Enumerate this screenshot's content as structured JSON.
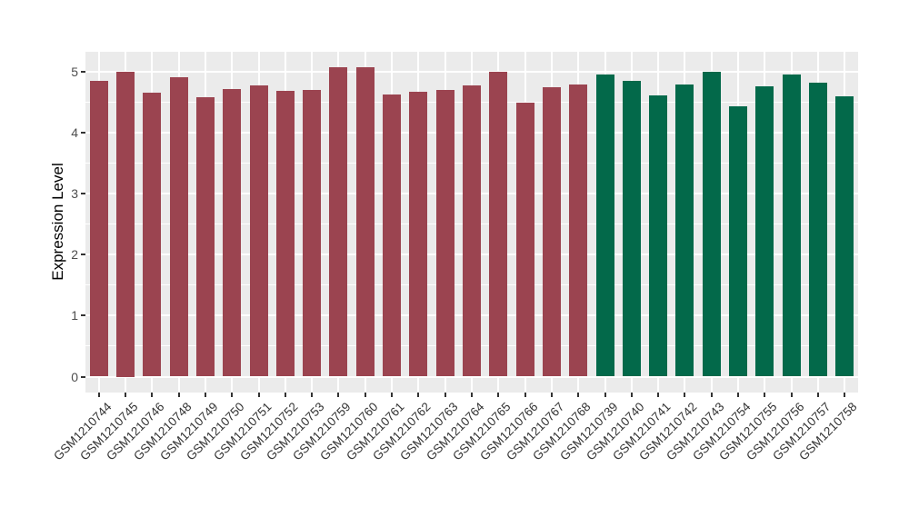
{
  "chart_data": {
    "type": "bar",
    "title": "",
    "xlabel": "",
    "ylabel": "Expression Level",
    "ylim": [
      0,
      5.32
    ],
    "yticks": [
      0,
      1,
      2,
      3,
      4,
      5
    ],
    "yticks_minor": [
      0.5,
      1.5,
      2.5,
      3.5,
      4.5
    ],
    "grid": "on",
    "legend_position": "none",
    "panel_background": "#EBEBEB",
    "gridline_color": "#FFFFFF",
    "tick_color": "#333333",
    "tick_label_color": "#4D4D4D",
    "groups": [
      {
        "name": "group-red",
        "color": "#9B4450"
      },
      {
        "name": "group-green",
        "color": "#03694A"
      }
    ],
    "bars": [
      {
        "label": "GSM1210744",
        "value": 4.85,
        "group": 0
      },
      {
        "label": "GSM1210745",
        "value": 5.0,
        "group": 0
      },
      {
        "label": "GSM1210746",
        "value": 4.65,
        "group": 0
      },
      {
        "label": "GSM1210748",
        "value": 4.91,
        "group": 0
      },
      {
        "label": "GSM1210749",
        "value": 4.58,
        "group": 0
      },
      {
        "label": "GSM1210750",
        "value": 4.71,
        "group": 0
      },
      {
        "label": "GSM1210751",
        "value": 4.77,
        "group": 0
      },
      {
        "label": "GSM1210752",
        "value": 4.68,
        "group": 0
      },
      {
        "label": "GSM1210753",
        "value": 4.69,
        "group": 0
      },
      {
        "label": "GSM1210759",
        "value": 5.07,
        "group": 0
      },
      {
        "label": "GSM1210760",
        "value": 5.07,
        "group": 0
      },
      {
        "label": "GSM1210761",
        "value": 4.62,
        "group": 0
      },
      {
        "label": "GSM1210762",
        "value": 4.67,
        "group": 0
      },
      {
        "label": "GSM1210763",
        "value": 4.69,
        "group": 0
      },
      {
        "label": "GSM1210764",
        "value": 4.77,
        "group": 0
      },
      {
        "label": "GSM1210765",
        "value": 4.99,
        "group": 0
      },
      {
        "label": "GSM1210766",
        "value": 4.49,
        "group": 0
      },
      {
        "label": "GSM1210767",
        "value": 4.74,
        "group": 0
      },
      {
        "label": "GSM1210768",
        "value": 4.79,
        "group": 0
      },
      {
        "label": "GSM1210739",
        "value": 4.95,
        "group": 1
      },
      {
        "label": "GSM1210740",
        "value": 4.84,
        "group": 1
      },
      {
        "label": "GSM1210741",
        "value": 4.6,
        "group": 1
      },
      {
        "label": "GSM1210742",
        "value": 4.78,
        "group": 1
      },
      {
        "label": "GSM1210743",
        "value": 4.99,
        "group": 1
      },
      {
        "label": "GSM1210754",
        "value": 4.42,
        "group": 1
      },
      {
        "label": "GSM1210755",
        "value": 4.76,
        "group": 1
      },
      {
        "label": "GSM1210756",
        "value": 4.95,
        "group": 1
      },
      {
        "label": "GSM1210757",
        "value": 4.81,
        "group": 1
      },
      {
        "label": "GSM1210758",
        "value": 4.59,
        "group": 1
      }
    ]
  }
}
